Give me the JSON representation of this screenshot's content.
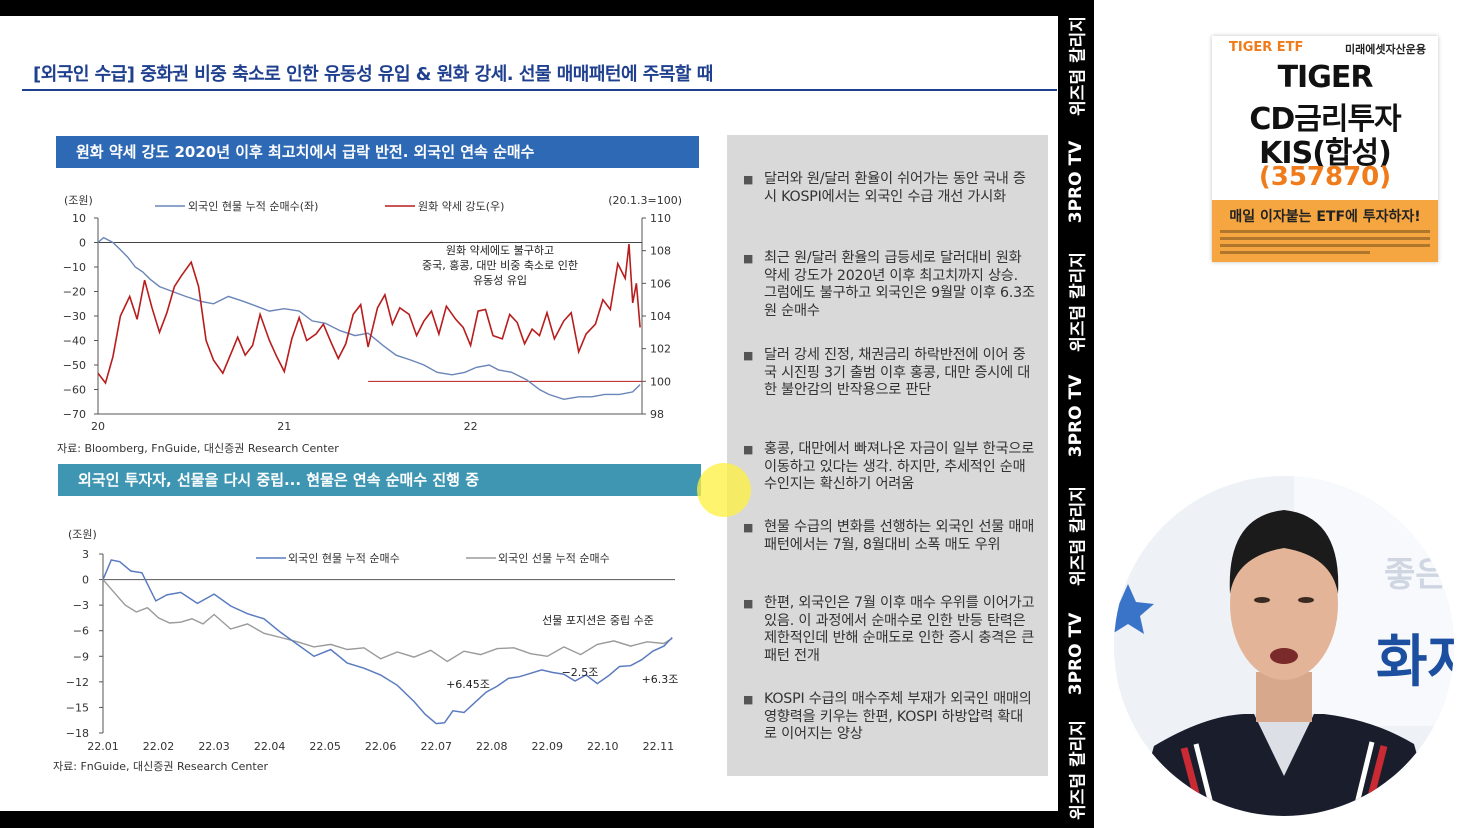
{
  "slide": {
    "title": "[외국인 수급] 중화권 비중 축소로 인한 유동성 유입 & 원화 강세. 선물 매매패턴에 주목할 때"
  },
  "chart_data": [
    {
      "type": "line",
      "title": "원화 약세 강도 2020년 이후 최고치에서 급락 반전. 외국인 연속 순매수",
      "left_unit": "(조원)",
      "right_unit": "(20.1.3=100)",
      "y_left_ticks": [
        "10",
        "0",
        "−10",
        "−20",
        "−30",
        "−40",
        "−50",
        "−60",
        "−70"
      ],
      "y_right_ticks": [
        "110",
        "108",
        "106",
        "104",
        "102",
        "100",
        "98"
      ],
      "x_ticks": [
        "20",
        "21",
        "22"
      ],
      "ylim_left": [
        -70,
        10
      ],
      "ylim_right": [
        98,
        110
      ],
      "xlim": [
        2020.0,
        2022.92
      ],
      "series": [
        {
          "name": "외국인 현물 누적 순매수(좌)",
          "axis": "left",
          "color": "#6a85b8",
          "x": [
            2020.0,
            2020.03,
            2020.08,
            2020.12,
            2020.16,
            2020.2,
            2020.24,
            2020.28,
            2020.33,
            2020.4,
            2020.47,
            2020.55,
            2020.62,
            2020.7,
            2020.78,
            2020.85,
            2020.92,
            2021.0,
            2021.08,
            2021.15,
            2021.22,
            2021.3,
            2021.38,
            2021.45,
            2021.53,
            2021.6,
            2021.68,
            2021.75,
            2021.82,
            2021.9,
            2021.97,
            2022.03,
            2022.1,
            2022.15,
            2022.22,
            2022.3,
            2022.37,
            2022.42,
            2022.5,
            2022.58,
            2022.65,
            2022.72,
            2022.8,
            2022.87,
            2022.91
          ],
          "y": [
            0,
            2,
            0,
            -3,
            -6,
            -10,
            -12,
            -15,
            -18,
            -20,
            -22,
            -24,
            -25,
            -22,
            -24,
            -26,
            -28,
            -27,
            -28,
            -32,
            -33,
            -36,
            -38,
            -37,
            -42,
            -46,
            -48,
            -50,
            -53,
            -54,
            -53,
            -51,
            -50,
            -52,
            -53,
            -56,
            -60,
            -62,
            -64,
            -63,
            -63,
            -62,
            -62,
            -61,
            -58
          ]
        },
        {
          "name": "원화 약세 강도(우)",
          "axis": "right",
          "color": "#b81d1d",
          "x": [
            2020.0,
            2020.04,
            2020.08,
            2020.12,
            2020.17,
            2020.21,
            2020.25,
            2020.29,
            2020.33,
            2020.37,
            2020.41,
            2020.45,
            2020.5,
            2020.54,
            2020.58,
            2020.62,
            2020.67,
            2020.71,
            2020.75,
            2020.79,
            2020.83,
            2020.87,
            2020.92,
            2020.96,
            2021.0,
            2021.04,
            2021.08,
            2021.12,
            2021.17,
            2021.21,
            2021.25,
            2021.29,
            2021.33,
            2021.37,
            2021.41,
            2021.45,
            2021.5,
            2021.54,
            2021.58,
            2021.62,
            2021.67,
            2021.71,
            2021.75,
            2021.79,
            2021.83,
            2021.87,
            2021.92,
            2021.96,
            2022.0,
            2022.04,
            2022.08,
            2022.12,
            2022.17,
            2022.21,
            2022.25,
            2022.29,
            2022.33,
            2022.37,
            2022.41,
            2022.45,
            2022.5,
            2022.54,
            2022.58,
            2022.62,
            2022.67,
            2022.71,
            2022.75,
            2022.79,
            2022.83,
            2022.85,
            2022.87,
            2022.89,
            2022.91
          ],
          "y": [
            100.5,
            99.9,
            101.5,
            104.0,
            105.2,
            103.8,
            106.2,
            104.5,
            103.0,
            104.2,
            105.8,
            106.5,
            107.3,
            105.8,
            102.5,
            101.3,
            100.5,
            101.6,
            102.7,
            101.6,
            102.2,
            104.1,
            102.5,
            101.5,
            100.6,
            102.6,
            103.9,
            102.5,
            102.9,
            103.5,
            102.4,
            101.4,
            102.3,
            104.1,
            104.7,
            102.1,
            104.5,
            105.3,
            103.5,
            104.5,
            104.1,
            102.8,
            103.7,
            104.3,
            102.9,
            104.6,
            103.8,
            103.3,
            102.2,
            104.3,
            104.4,
            102.8,
            102.6,
            104.1,
            103.6,
            102.3,
            103.2,
            102.8,
            104.2,
            102.6,
            103.7,
            104.2,
            101.8,
            102.9,
            103.5,
            105.0,
            104.4,
            107.2,
            106.3,
            108.4,
            104.8,
            106.0,
            103.3
          ]
        }
      ],
      "reference_line": {
        "value": 100,
        "axis": "right"
      },
      "annotation": [
        "원화 약세에도 불구하고",
        "중국, 홍콩, 대만 비중 축소로 인한",
        "유동성 유입"
      ],
      "source": "자료: Bloomberg, FnGuide, 대신증권 Research Center"
    },
    {
      "type": "line",
      "title": "외국인 투자자, 선물을 다시 중립... 현물은 연속 순매수 진행 중",
      "left_unit": "(조원)",
      "y_ticks": [
        "3",
        "0",
        "−3",
        "−6",
        "−9",
        "−12",
        "−15",
        "−18"
      ],
      "x_ticks": [
        "22.01",
        "22.02",
        "22.03",
        "22.04",
        "22.05",
        "22.06",
        "22.07",
        "22.08",
        "22.09",
        "22.10",
        "22.11"
      ],
      "ylim": [
        -18,
        3
      ],
      "xlim": [
        1.0,
        11.3
      ],
      "series": [
        {
          "name": "외국인 현물 누적 순매수",
          "color": "#5a7bbf",
          "x": [
            1.0,
            1.15,
            1.3,
            1.5,
            1.7,
            1.95,
            2.15,
            2.4,
            2.7,
            3.0,
            3.3,
            3.6,
            3.9,
            4.2,
            4.5,
            4.8,
            5.1,
            5.4,
            5.7,
            6.0,
            6.3,
            6.6,
            6.8,
            7.0,
            7.15,
            7.3,
            7.5,
            7.7,
            7.9,
            8.1,
            8.3,
            8.5,
            8.7,
            8.9,
            9.1,
            9.3,
            9.5,
            9.7,
            9.9,
            10.1,
            10.3,
            10.5,
            10.7,
            10.9,
            11.1,
            11.25
          ],
          "y": [
            0,
            2.3,
            2.1,
            1.0,
            0.8,
            -2.5,
            -1.8,
            -1.5,
            -2.8,
            -1.7,
            -3.1,
            -4.0,
            -4.6,
            -6.2,
            -7.6,
            -9.0,
            -8.2,
            -9.8,
            -10.4,
            -11.2,
            -12.4,
            -14.3,
            -15.8,
            -16.9,
            -16.8,
            -15.4,
            -15.6,
            -14.4,
            -13.2,
            -12.5,
            -11.6,
            -11.4,
            -11.0,
            -10.6,
            -10.9,
            -11.1,
            -11.9,
            -11.2,
            -12.2,
            -11.3,
            -10.2,
            -10.1,
            -9.4,
            -8.4,
            -7.8,
            -6.8
          ]
        },
        {
          "name": "외국인 선물 누적 순매수",
          "color": "#9a9a9a",
          "x": [
            1.0,
            1.2,
            1.4,
            1.6,
            1.8,
            2.0,
            2.2,
            2.4,
            2.6,
            2.8,
            3.0,
            3.3,
            3.6,
            3.9,
            4.2,
            4.5,
            4.8,
            5.1,
            5.4,
            5.7,
            6.0,
            6.3,
            6.6,
            6.9,
            7.2,
            7.5,
            7.8,
            8.1,
            8.4,
            8.7,
            9.0,
            9.3,
            9.6,
            9.9,
            10.2,
            10.5,
            10.8,
            11.1,
            11.25
          ],
          "y": [
            0,
            -1.5,
            -3.0,
            -3.8,
            -3.3,
            -4.5,
            -5.1,
            -5.0,
            -4.6,
            -5.2,
            -4.1,
            -5.8,
            -5.2,
            -6.3,
            -6.8,
            -7.3,
            -7.9,
            -7.6,
            -8.2,
            -8.0,
            -9.3,
            -8.5,
            -9.1,
            -8.3,
            -9.6,
            -8.4,
            -8.8,
            -8.1,
            -8.0,
            -8.7,
            -9.0,
            -7.9,
            -8.8,
            -7.6,
            -7.2,
            -7.8,
            -7.3,
            -7.5,
            -6.9
          ]
        }
      ],
      "annotations": [
        "선물 포지션은 중립 수준",
        "+6.45조",
        "−2.5조",
        "+6.3조"
      ],
      "source": "자료: FnGuide, 대신증권 Research Center"
    }
  ],
  "bullets": [
    "달러와 원/달러 환율이 쉬어가는 동안 국내 증시 KOSPI에서는 외국인 수급 개선 가시화",
    "최근 원/달러 환율의 급등세로 달러대비 원화 약세 강도가 2020년 이후 최고치까지 상승. 그럼에도 불구하고 외국인은 9월말 이후 6.3조원 순매수",
    "달러 강세 진정, 채권금리 하락반전에 이어 중국 시진핑 3기 출범 이후 홍콩, 대만 증시에 대한 불안감의 반작용으로 판단",
    "홍콩, 대만에서 빠져나온 자금이 일부 한국으로 이동하고 있다는 생각. 하지만, 추세적인 순매수인지는 확신하기 어려움",
    "현물 수급의 변화를 선행하는 외국인 선물 매매패턴에서는 7월, 8월대비 소폭 매도 우위",
    "한편, 외국인은 7월 이후 매수 우위를 이어가고 있음. 이 과정에서 순매수로 인한 반등 탄력은 제한적인데 반해 순매도로 인한 증시 충격은 큰 패턴 전개",
    "KOSPI 수급의 매수주체 부재가 외국인 매매의 영향력을 키우는 한편, KOSPI 하방압력 확대로 이어지는 양상"
  ],
  "banner": {
    "labels": [
      "위즈덤 칼리지",
      "3PRO TV",
      "위즈덤 칼리지",
      "3PRO TV",
      "위즈덤 칼리지",
      "3PRO TV",
      "위즈덤 칼리지"
    ]
  },
  "ad": {
    "brand": "TIGER ETF",
    "company": "미래에셋자산운용",
    "line1": "TIGER",
    "line2": "CD금리투자",
    "line3": "KIS(합성)",
    "code": "(357870)",
    "slogan": "매일 이자붙는 ETF에 투자하자!"
  },
  "presenter": {
    "backdrop_text": "좋은",
    "backdrop_text2": "화자"
  }
}
